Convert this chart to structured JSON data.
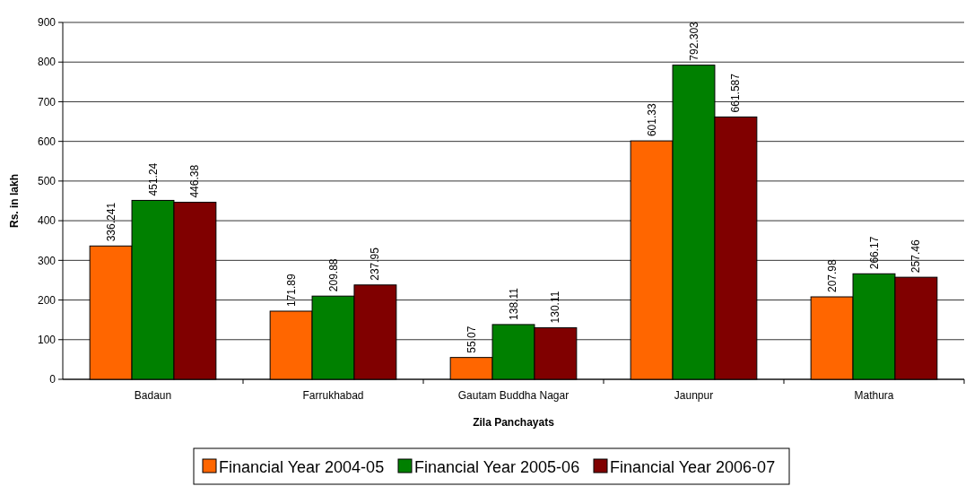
{
  "chart_data": {
    "type": "bar",
    "xlabel": "Zila Panchayats",
    "ylabel": "Rs. in lakh",
    "categories": [
      "Badaun",
      "Farrukhabad",
      "Gautam Buddha Nagar",
      "Jaunpur",
      "Mathura"
    ],
    "series": [
      {
        "name": "Financial Year 2004-05",
        "color": "#ff6600",
        "values": [
          336.241,
          171.89,
          55.07,
          601.33,
          207.98
        ]
      },
      {
        "name": "Financial Year 2005-06",
        "color": "#008000",
        "values": [
          451.24,
          209.88,
          138.11,
          792.303,
          266.17
        ]
      },
      {
        "name": "Financial Year 2006-07",
        "color": "#800000",
        "values": [
          446.38,
          237.95,
          130.11,
          661.587,
          257.46
        ]
      }
    ],
    "ylim": [
      0,
      900
    ],
    "yticks": [
      0,
      100,
      200,
      300,
      400,
      500,
      600,
      700,
      800,
      900
    ],
    "grid": "y",
    "legend": "bottom",
    "data_labels": true
  }
}
